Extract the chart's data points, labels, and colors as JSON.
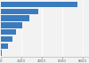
{
  "values": [
    7500,
    3600,
    2800,
    2100,
    1500,
    1100,
    700,
    100
  ],
  "bar_color": "#3a7bbf",
  "background_color": "#f2f2f2",
  "xlim": [
    0,
    8500
  ],
  "bar_height": 0.82,
  "grid_color": "#ffffff",
  "tick_color": "#666666",
  "tick_fontsize": 2.8
}
